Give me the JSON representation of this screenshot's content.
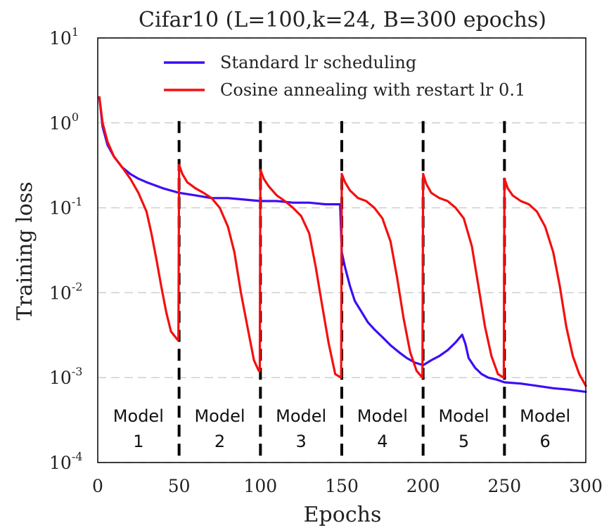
{
  "chart_data": {
    "type": "line",
    "title": "Cifar10 (L=100,k=24, B=300 epochs)",
    "xlabel": "Epochs",
    "ylabel": "Training loss",
    "xlim": [
      0,
      300
    ],
    "ylim": [
      0.0001,
      10
    ],
    "yscale": "log",
    "grid": true,
    "legend_position": "top-right",
    "x_ticks": [
      {
        "value": 0,
        "label": "0"
      },
      {
        "value": 50,
        "label": "50"
      },
      {
        "value": 100,
        "label": "100"
      },
      {
        "value": 150,
        "label": "150"
      },
      {
        "value": 200,
        "label": "200"
      },
      {
        "value": 250,
        "label": "250"
      },
      {
        "value": 300,
        "label": "300"
      }
    ],
    "y_ticks": [
      {
        "value": 10,
        "base": "10",
        "exp": "1"
      },
      {
        "value": 1,
        "base": "10",
        "exp": "0"
      },
      {
        "value": 0.1,
        "base": "10",
        "exp": "-1"
      },
      {
        "value": 0.01,
        "base": "10",
        "exp": "-2"
      },
      {
        "value": 0.001,
        "base": "10",
        "exp": "-3"
      },
      {
        "value": 0.0001,
        "base": "10",
        "exp": "-4"
      }
    ],
    "series": [
      {
        "name": "Standard lr scheduling",
        "color": "#3d0df5",
        "points": [
          [
            1,
            2.0
          ],
          [
            3,
            0.9
          ],
          [
            6,
            0.55
          ],
          [
            10,
            0.4
          ],
          [
            15,
            0.3
          ],
          [
            20,
            0.25
          ],
          [
            25,
            0.22
          ],
          [
            30,
            0.2
          ],
          [
            40,
            0.17
          ],
          [
            50,
            0.15
          ],
          [
            60,
            0.14
          ],
          [
            70,
            0.13
          ],
          [
            80,
            0.13
          ],
          [
            90,
            0.125
          ],
          [
            100,
            0.12
          ],
          [
            110,
            0.12
          ],
          [
            120,
            0.115
          ],
          [
            130,
            0.115
          ],
          [
            140,
            0.11
          ],
          [
            149,
            0.11
          ],
          [
            150,
            0.03
          ],
          [
            152,
            0.02
          ],
          [
            155,
            0.012
          ],
          [
            158,
            0.008
          ],
          [
            162,
            0.006
          ],
          [
            166,
            0.0045
          ],
          [
            170,
            0.0037
          ],
          [
            175,
            0.003
          ],
          [
            180,
            0.0024
          ],
          [
            185,
            0.002
          ],
          [
            190,
            0.0017
          ],
          [
            195,
            0.0015
          ],
          [
            200,
            0.0014
          ],
          [
            205,
            0.0016
          ],
          [
            210,
            0.0018
          ],
          [
            215,
            0.0021
          ],
          [
            220,
            0.0026
          ],
          [
            224,
            0.0032
          ],
          [
            226,
            0.0025
          ],
          [
            228,
            0.0017
          ],
          [
            232,
            0.0013
          ],
          [
            236,
            0.0011
          ],
          [
            240,
            0.001
          ],
          [
            245,
            0.00095
          ],
          [
            250,
            0.00088
          ],
          [
            260,
            0.00085
          ],
          [
            270,
            0.0008
          ],
          [
            280,
            0.00075
          ],
          [
            290,
            0.00072
          ],
          [
            295,
            0.0007
          ],
          [
            300,
            0.00068
          ]
        ]
      },
      {
        "name": "Cosine annealing with restart lr 0.1",
        "color": "#f40f0f",
        "points": [
          [
            1,
            2.0
          ],
          [
            3,
            1.0
          ],
          [
            6,
            0.6
          ],
          [
            10,
            0.4
          ],
          [
            15,
            0.3
          ],
          [
            20,
            0.22
          ],
          [
            25,
            0.15
          ],
          [
            30,
            0.09
          ],
          [
            33,
            0.05
          ],
          [
            36,
            0.025
          ],
          [
            39,
            0.012
          ],
          [
            42,
            0.006
          ],
          [
            45,
            0.0035
          ],
          [
            49,
            0.0028
          ],
          [
            49.6,
            0.0028
          ],
          [
            50,
            0.32
          ],
          [
            52,
            0.25
          ],
          [
            55,
            0.2
          ],
          [
            60,
            0.17
          ],
          [
            65,
            0.15
          ],
          [
            70,
            0.13
          ],
          [
            75,
            0.1
          ],
          [
            80,
            0.06
          ],
          [
            84,
            0.03
          ],
          [
            88,
            0.01
          ],
          [
            92,
            0.004
          ],
          [
            96,
            0.0016
          ],
          [
            99,
            0.0012
          ],
          [
            99.6,
            0.0012
          ],
          [
            100,
            0.28
          ],
          [
            102,
            0.22
          ],
          [
            105,
            0.18
          ],
          [
            110,
            0.14
          ],
          [
            115,
            0.12
          ],
          [
            120,
            0.1
          ],
          [
            125,
            0.08
          ],
          [
            130,
            0.05
          ],
          [
            134,
            0.02
          ],
          [
            138,
            0.007
          ],
          [
            142,
            0.0025
          ],
          [
            146,
            0.0011
          ],
          [
            149.6,
            0.001
          ],
          [
            150,
            0.25
          ],
          [
            152,
            0.2
          ],
          [
            155,
            0.16
          ],
          [
            160,
            0.13
          ],
          [
            165,
            0.12
          ],
          [
            170,
            0.1
          ],
          [
            175,
            0.075
          ],
          [
            180,
            0.04
          ],
          [
            184,
            0.015
          ],
          [
            188,
            0.005
          ],
          [
            192,
            0.002
          ],
          [
            196,
            0.0012
          ],
          [
            199.6,
            0.001
          ],
          [
            200,
            0.25
          ],
          [
            202,
            0.19
          ],
          [
            205,
            0.15
          ],
          [
            210,
            0.13
          ],
          [
            215,
            0.12
          ],
          [
            220,
            0.1
          ],
          [
            225,
            0.075
          ],
          [
            230,
            0.035
          ],
          [
            234,
            0.012
          ],
          [
            238,
            0.004
          ],
          [
            242,
            0.0018
          ],
          [
            246,
            0.0011
          ],
          [
            249.6,
            0.001
          ],
          [
            250,
            0.22
          ],
          [
            252,
            0.17
          ],
          [
            255,
            0.14
          ],
          [
            260,
            0.12
          ],
          [
            265,
            0.11
          ],
          [
            270,
            0.09
          ],
          [
            275,
            0.06
          ],
          [
            280,
            0.03
          ],
          [
            284,
            0.012
          ],
          [
            288,
            0.004
          ],
          [
            292,
            0.0018
          ],
          [
            296,
            0.0011
          ],
          [
            300,
            0.0008
          ]
        ]
      }
    ],
    "restart_lines": [
      50,
      100,
      150,
      200,
      250
    ],
    "model_regions": [
      {
        "line1": "Model",
        "line2": "1",
        "x_center": 25
      },
      {
        "line1": "Model",
        "line2": "2",
        "x_center": 75
      },
      {
        "line1": "Model",
        "line2": "3",
        "x_center": 125
      },
      {
        "line1": "Model",
        "line2": "4",
        "x_center": 175
      },
      {
        "line1": "Model",
        "line2": "5",
        "x_center": 225
      },
      {
        "line1": "Model",
        "line2": "6",
        "x_center": 275
      }
    ]
  }
}
